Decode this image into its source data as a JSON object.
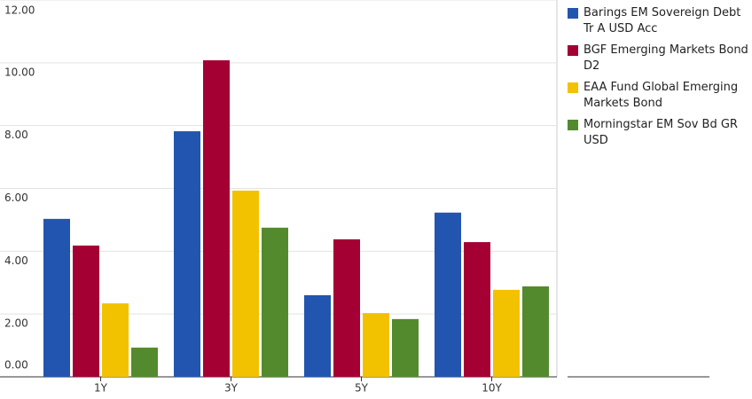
{
  "chart_data": {
    "type": "bar",
    "categories": [
      "1Y",
      "3Y",
      "5Y",
      "10Y"
    ],
    "series": [
      {
        "name": "Barings EM Sovereign Debt Tr A USD Acc",
        "color": "#2255b0",
        "values": [
          5.03,
          7.82,
          2.6,
          5.23
        ]
      },
      {
        "name": "BGF Emerging Markets Bond D2",
        "color": "#a50034",
        "values": [
          4.18,
          10.08,
          4.38,
          4.29
        ]
      },
      {
        "name": "EAA Fund Global Emerging Markets Bond",
        "color": "#f2c200",
        "values": [
          2.34,
          5.93,
          2.03,
          2.77
        ]
      },
      {
        "name": "Morningstar EM Sov Bd GR USD",
        "color": "#548a2e",
        "values": [
          0.93,
          4.75,
          1.84,
          2.88
        ]
      }
    ],
    "ylim": [
      0,
      12
    ],
    "yticks": [
      {
        "value": 0,
        "label": "0.00"
      },
      {
        "value": 2,
        "label": "2.00"
      },
      {
        "value": 4,
        "label": "4.00"
      },
      {
        "value": 6,
        "label": "6.00"
      },
      {
        "value": 8,
        "label": "8.00"
      },
      {
        "value": 10,
        "label": "10.00"
      },
      {
        "value": 12,
        "label": "12.00"
      }
    ],
    "grid": true
  }
}
